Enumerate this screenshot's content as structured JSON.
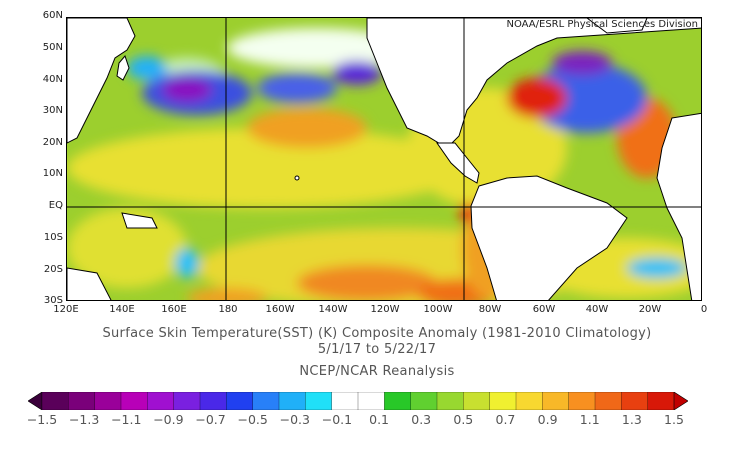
{
  "credit": "NOAA/ESRL Physical Sciences Division",
  "lat_labels": [
    "60N",
    "50N",
    "40N",
    "30N",
    "20N",
    "10N",
    "EQ",
    "10S",
    "20S",
    "30S"
  ],
  "lon_labels": [
    "120E",
    "140E",
    "160E",
    "180",
    "160W",
    "140W",
    "120W",
    "100W",
    "80W",
    "60W",
    "40W",
    "20W",
    "0"
  ],
  "title": {
    "line1": "Surface Skin Temperature(SST) (K) Composite Anomaly (1981-2010 Climatology)",
    "line2": "5/1/17  to 5/22/17",
    "line3": "NCEP/NCAR Reanalysis"
  },
  "colorbar": {
    "labels": [
      "-1.5",
      "-1.3",
      "-1.1",
      "-0.9",
      "-0.7",
      "-0.5",
      "-0.3",
      "-0.1",
      "0.1",
      "0.3",
      "0.5",
      "0.7",
      "0.9",
      "1.1",
      "1.3",
      "1.5"
    ],
    "colors": [
      "#5a005a",
      "#7a007a",
      "#9a009a",
      "#b800b8",
      "#a010d0",
      "#7a20e0",
      "#4a28e8",
      "#2040f0",
      "#2880f8",
      "#20b0f8",
      "#20e0f8",
      "#ffffff",
      "#ffffff",
      "#28c828",
      "#60d030",
      "#98d830",
      "#c8e030",
      "#f0f030",
      "#f8d830",
      "#f8b828",
      "#f89020",
      "#f06818",
      "#e84010",
      "#d81808"
    ]
  },
  "colors": {
    "background_anomaly": "#9ccf2e",
    "land": "#ffffff",
    "coast": "#000000"
  }
}
